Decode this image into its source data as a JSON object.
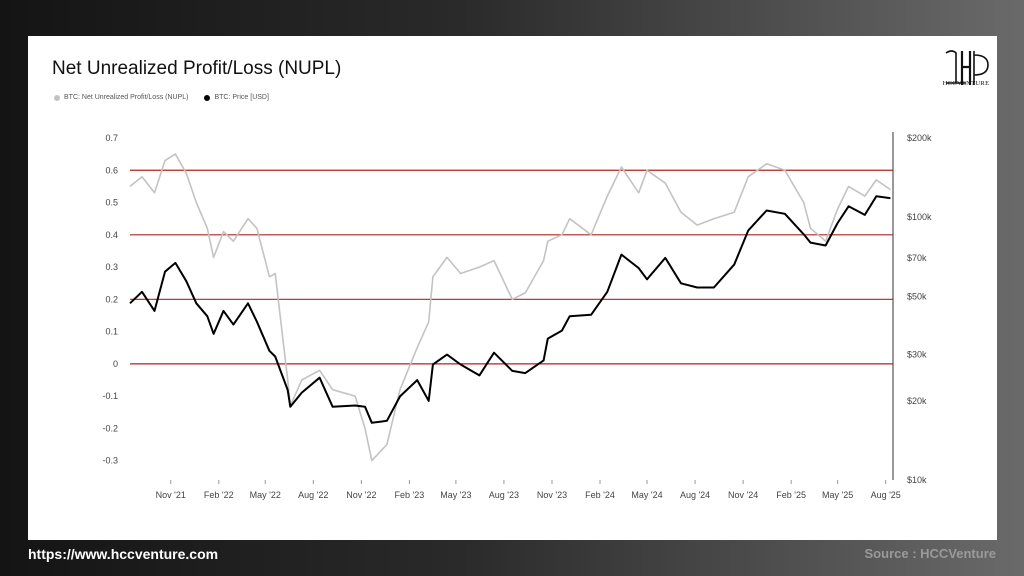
{
  "title": "Net Unrealized Profit/Loss (NUPL)",
  "brand": "HCCVENTURE",
  "footer": {
    "url": "https://www.hccventure.com",
    "source": "Source : HCCVenture"
  },
  "colors": {
    "nupl": "#c3c3c3",
    "price": "#000000",
    "threshold": "#b22222",
    "background": "#ffffff"
  },
  "chart_data": {
    "type": "line",
    "title": "Net Unrealized Profit/Loss (NUPL)",
    "legend": [
      "BTC: Net Unrealized Profit/Loss (NUPL)",
      "BTC: Price [USD]"
    ],
    "legend_placement": "top-left",
    "grid": false,
    "x_ticks": [
      "Nov '21",
      "Feb '22",
      "May '22",
      "Aug '22",
      "Nov '22",
      "Feb '23",
      "May '23",
      "Aug '23",
      "Nov '23",
      "Feb '24",
      "May '24",
      "Aug '24",
      "Nov '24",
      "Feb '25",
      "May '25",
      "Aug '25"
    ],
    "y_left": {
      "ticks": [
        "0.7",
        "0.6",
        "0.5",
        "0.4",
        "0.3",
        "0.2",
        "0.1",
        "0",
        "-0.1",
        "-0.2",
        "-0.3"
      ],
      "range": [
        -0.36,
        0.7
      ]
    },
    "y_right": {
      "scale": "log",
      "ticks": [
        "$200k",
        "$100k",
        "$70k",
        "$50k",
        "$30k",
        "$20k",
        "$10k"
      ],
      "range": [
        10000,
        200000
      ]
    },
    "horizontal_lines": [
      0.6,
      0.4,
      0.2,
      0
    ],
    "series": [
      {
        "name": "BTC: Net Unrealized Profit/Loss (NUPL)",
        "axis": "left",
        "unit": "NUPL",
        "x": [
          "2021-08-15",
          "2021-09-07",
          "2021-10-01",
          "2021-10-21",
          "2021-11-10",
          "2021-12-01",
          "2021-12-20",
          "2022-01-10",
          "2022-01-22",
          "2022-02-10",
          "2022-03-01",
          "2022-03-29",
          "2022-04-15",
          "2022-05-09",
          "2022-05-20",
          "2022-06-13",
          "2022-06-18",
          "2022-07-10",
          "2022-08-13",
          "2022-09-07",
          "2022-10-20",
          "2022-11-08",
          "2022-11-21",
          "2022-12-20",
          "2023-01-14",
          "2023-02-16",
          "2023-03-10",
          "2023-03-18",
          "2023-04-14",
          "2023-05-10",
          "2023-06-15",
          "2023-07-13",
          "2023-08-17",
          "2023-09-11",
          "2023-10-16",
          "2023-10-24",
          "2023-11-20",
          "2023-12-05",
          "2024-01-15",
          "2024-02-15",
          "2024-03-13",
          "2024-04-15",
          "2024-05-01",
          "2024-06-05",
          "2024-07-05",
          "2024-08-05",
          "2024-09-06",
          "2024-10-15",
          "2024-11-11",
          "2024-12-16",
          "2025-01-20",
          "2025-02-25",
          "2025-03-10",
          "2025-04-08",
          "2025-05-01",
          "2025-05-22",
          "2025-06-22",
          "2025-07-14",
          "2025-08-10"
        ],
        "values": [
          0.55,
          0.58,
          0.53,
          0.63,
          0.65,
          0.59,
          0.5,
          0.42,
          0.33,
          0.41,
          0.38,
          0.45,
          0.42,
          0.27,
          0.28,
          -0.05,
          -0.13,
          -0.05,
          -0.02,
          -0.08,
          -0.1,
          -0.2,
          -0.3,
          -0.25,
          -0.08,
          0.05,
          0.13,
          0.27,
          0.33,
          0.28,
          0.3,
          0.32,
          0.2,
          0.22,
          0.32,
          0.38,
          0.4,
          0.45,
          0.4,
          0.52,
          0.61,
          0.53,
          0.6,
          0.56,
          0.47,
          0.43,
          0.45,
          0.47,
          0.58,
          0.62,
          0.6,
          0.5,
          0.42,
          0.38,
          0.48,
          0.55,
          0.52,
          0.57,
          0.54
        ]
      },
      {
        "name": "BTC: Price [USD]",
        "axis": "right",
        "unit": "USD",
        "x": [
          "2021-08-15",
          "2021-09-07",
          "2021-10-01",
          "2021-10-21",
          "2021-11-10",
          "2021-12-01",
          "2021-12-20",
          "2022-01-10",
          "2022-01-22",
          "2022-02-10",
          "2022-03-01",
          "2022-03-29",
          "2022-04-15",
          "2022-05-09",
          "2022-05-20",
          "2022-06-13",
          "2022-06-18",
          "2022-07-10",
          "2022-08-13",
          "2022-09-07",
          "2022-10-20",
          "2022-11-08",
          "2022-11-21",
          "2022-12-20",
          "2023-01-14",
          "2023-02-16",
          "2023-03-10",
          "2023-03-18",
          "2023-04-14",
          "2023-05-10",
          "2023-06-15",
          "2023-07-13",
          "2023-08-17",
          "2023-09-11",
          "2023-10-16",
          "2023-10-24",
          "2023-11-20",
          "2023-12-05",
          "2024-01-15",
          "2024-02-15",
          "2024-03-13",
          "2024-04-15",
          "2024-05-01",
          "2024-06-05",
          "2024-07-05",
          "2024-08-05",
          "2024-09-06",
          "2024-10-15",
          "2024-11-11",
          "2024-12-16",
          "2025-01-20",
          "2025-02-25",
          "2025-03-10",
          "2025-04-08",
          "2025-05-01",
          "2025-05-22",
          "2025-06-22",
          "2025-07-14",
          "2025-08-10"
        ],
        "values": [
          47000,
          52000,
          44000,
          62000,
          67000,
          57000,
          47000,
          42000,
          36000,
          44000,
          39000,
          47000,
          40000,
          31000,
          29500,
          22000,
          19000,
          21500,
          24500,
          19000,
          19200,
          19000,
          16500,
          16800,
          20800,
          24000,
          20000,
          27500,
          30000,
          27500,
          25000,
          30500,
          26000,
          25500,
          28500,
          34500,
          37000,
          42000,
          42500,
          52000,
          72000,
          64000,
          58000,
          70000,
          56000,
          54000,
          54000,
          66000,
          89000,
          106000,
          103000,
          86000,
          80000,
          78000,
          95000,
          110000,
          102000,
          120000,
          118000
        ]
      }
    ]
  }
}
